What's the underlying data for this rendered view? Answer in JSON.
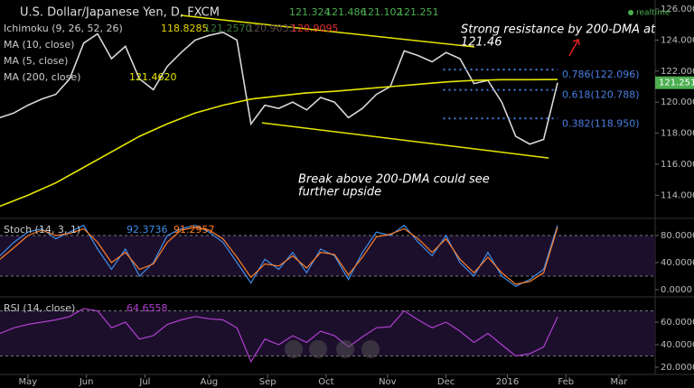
{
  "chart_data": [
    {
      "type": "line",
      "title": "U.S. Dollar/Japanese Yen, D, FXCM",
      "status": "realtime",
      "quote": {
        "values": [
          121.324,
          121.486,
          121.102,
          121.251
        ],
        "color": "#4caf50"
      },
      "indicators": [
        {
          "name": "Ichimoku (9, 26, 52, 26)",
          "values": [
            118.8285,
            121.257,
            120.9033,
            120.9095
          ],
          "value_labels": [
            "118.8285",
            "121.2570",
            "120.9033",
            "120.9095"
          ],
          "colors": [
            "#e6d600",
            "#3d7a3d",
            "#5a4a4a",
            "#e03030"
          ]
        },
        {
          "name": "MA (10, close)"
        },
        {
          "name": "MA (5, close)"
        },
        {
          "name": "MA (200, close)",
          "values": [
            121.462
          ],
          "value_labels": [
            "121.4620"
          ],
          "colors": [
            "#e6e600"
          ]
        }
      ],
      "x": [
        -10,
        -5,
        0,
        5,
        10,
        15,
        20,
        25,
        30,
        35,
        40,
        45,
        50,
        55,
        60,
        65,
        70,
        75,
        80,
        85,
        90,
        95,
        100,
        105,
        110,
        115,
        120,
        125,
        130,
        135,
        140,
        145,
        150,
        155,
        160,
        165,
        170,
        175,
        180,
        185,
        190
      ],
      "xlim": [
        -10,
        225
      ],
      "ylim": [
        112.63,
        126.58
      ],
      "yticks": [
        {
          "value": 114,
          "label": "114.000"
        },
        {
          "value": 116,
          "label": "116.000"
        },
        {
          "value": 118,
          "label": "118.000"
        },
        {
          "value": 120,
          "label": "120.000"
        },
        {
          "value": 122,
          "label": "122.000"
        },
        {
          "value": 124,
          "label": "124.000"
        },
        {
          "value": 126,
          "label": "126.000"
        }
      ],
      "series": [
        {
          "color": "#d8d8d8",
          "values": [
            119.0,
            119.3,
            119.8,
            120.2,
            120.5,
            121.5,
            123.8,
            124.4,
            122.8,
            123.6,
            121.5,
            120.8,
            122.3,
            123.2,
            124.0,
            124.3,
            124.5,
            124.0,
            118.6,
            119.8,
            119.6,
            120.0,
            119.5,
            120.3,
            120.0,
            119.0,
            119.6,
            120.5,
            121.0,
            123.3,
            123.0,
            122.6,
            123.2,
            122.8,
            121.2,
            121.4,
            120.0,
            117.8,
            117.3,
            117.6,
            121.25
          ]
        },
        {
          "name": "MA (200, close)",
          "color": "#e6e600",
          "x": [
            -10,
            0,
            10,
            20,
            30,
            40,
            50,
            60,
            70,
            80,
            90,
            100,
            110,
            120,
            130,
            140,
            150,
            160,
            170,
            180,
            190
          ],
          "values": [
            113.3,
            114.0,
            114.8,
            115.8,
            116.8,
            117.8,
            118.6,
            119.3,
            119.8,
            120.2,
            120.4,
            120.6,
            120.7,
            120.85,
            121.0,
            121.15,
            121.3,
            121.4,
            121.45,
            121.45,
            121.46
          ]
        }
      ],
      "trendlines": [
        {
          "color": "#e6e600",
          "x": [
            54.8,
            160.2
          ],
          "values": [
            125.59,
            123.56
          ]
        },
        {
          "color": "#e6e600",
          "x": [
            84,
            186.8
          ],
          "values": [
            118.67,
            116.4
          ]
        }
      ],
      "fib_levels": [
        {
          "value": 122.096,
          "label": "0.786(122.096)",
          "x": [
            149,
            190
          ]
        },
        {
          "value": 120.788,
          "label": "0.618(120.788)",
          "x": [
            149,
            190
          ]
        },
        {
          "value": 118.95,
          "label": "0.382(118.950)",
          "x": [
            149,
            190
          ]
        }
      ],
      "fib_color": "#4a7fe0",
      "annotations": [
        {
          "lines": [
            "Strong resistance by 200-DMA at",
            "121.46"
          ]
        },
        {
          "lines": [
            "Break above 200-DMA could see",
            "further upside"
          ]
        }
      ]
    },
    {
      "type": "line",
      "title": "Stoch (14, 3, 1)",
      "readouts": [
        92.3736,
        91.2957
      ],
      "x": [
        -10,
        -5,
        0,
        5,
        10,
        15,
        20,
        25,
        30,
        35,
        40,
        45,
        50,
        55,
        60,
        65,
        70,
        75,
        80,
        85,
        90,
        95,
        100,
        105,
        110,
        115,
        120,
        125,
        130,
        135,
        140,
        145,
        150,
        155,
        160,
        165,
        170,
        175,
        180,
        185,
        190
      ],
      "xlim": [
        -10,
        225
      ],
      "ylim": [
        -5.3,
        101.3
      ],
      "yticks": [
        {
          "value": 0,
          "label": "0.0000"
        },
        {
          "value": 40,
          "label": "40.0000"
        },
        {
          "value": 80,
          "label": "80.0000"
        }
      ],
      "bands": [
        20,
        80
      ],
      "series": [
        {
          "color": "#3f8fe8",
          "values": [
            50,
            70,
            85,
            90,
            75,
            85,
            95,
            60,
            30,
            60,
            20,
            40,
            80,
            90,
            95,
            85,
            70,
            40,
            10,
            45,
            30,
            55,
            25,
            60,
            50,
            15,
            55,
            85,
            80,
            95,
            70,
            50,
            80,
            40,
            20,
            55,
            20,
            5,
            15,
            30,
            95
          ]
        },
        {
          "color": "#ff7f27",
          "values": [
            45,
            62,
            80,
            88,
            80,
            83,
            90,
            70,
            40,
            55,
            30,
            38,
            70,
            88,
            92,
            88,
            75,
            48,
            18,
            38,
            35,
            50,
            32,
            55,
            52,
            22,
            48,
            78,
            82,
            90,
            75,
            55,
            75,
            45,
            25,
            48,
            25,
            8,
            12,
            25,
            92
          ]
        }
      ]
    },
    {
      "type": "line",
      "title": "RSI (14, close)",
      "readouts": [
        64.6558
      ],
      "x": [
        -10,
        -5,
        0,
        5,
        10,
        15,
        20,
        25,
        30,
        35,
        40,
        45,
        50,
        55,
        60,
        65,
        70,
        75,
        80,
        85,
        90,
        95,
        100,
        105,
        110,
        115,
        120,
        125,
        130,
        135,
        140,
        145,
        150,
        155,
        160,
        165,
        170,
        175,
        180,
        185,
        190
      ],
      "xlim": [
        -10,
        225
      ],
      "ylim": [
        13.6,
        80
      ],
      "yticks": [
        {
          "value": 20,
          "label": "20.0000"
        },
        {
          "value": 40,
          "label": "40.0000"
        },
        {
          "value": 60,
          "label": "60.0000"
        }
      ],
      "bands": [
        30,
        70
      ],
      "xticks": [
        {
          "value": 0,
          "label": "May"
        },
        {
          "value": 21,
          "label": "Jun"
        },
        {
          "value": 42,
          "label": "Jul"
        },
        {
          "value": 65,
          "label": "Aug"
        },
        {
          "value": 86,
          "label": "Sep"
        },
        {
          "value": 107,
          "label": "Oct"
        },
        {
          "value": 129,
          "label": "Nov"
        },
        {
          "value": 150,
          "label": "Dec"
        },
        {
          "value": 172,
          "label": "2016"
        },
        {
          "value": 193,
          "label": "Feb"
        },
        {
          "value": 212,
          "label": "Mar"
        }
      ],
      "series": [
        {
          "color": "#b040d0",
          "values": [
            50,
            55,
            58,
            60,
            62,
            65,
            72,
            70,
            55,
            60,
            45,
            48,
            58,
            62,
            65,
            63,
            62,
            55,
            25,
            45,
            40,
            48,
            42,
            52,
            48,
            38,
            47,
            55,
            56,
            70,
            62,
            55,
            60,
            52,
            42,
            50,
            40,
            30,
            32,
            38,
            64.66
          ]
        }
      ]
    }
  ]
}
